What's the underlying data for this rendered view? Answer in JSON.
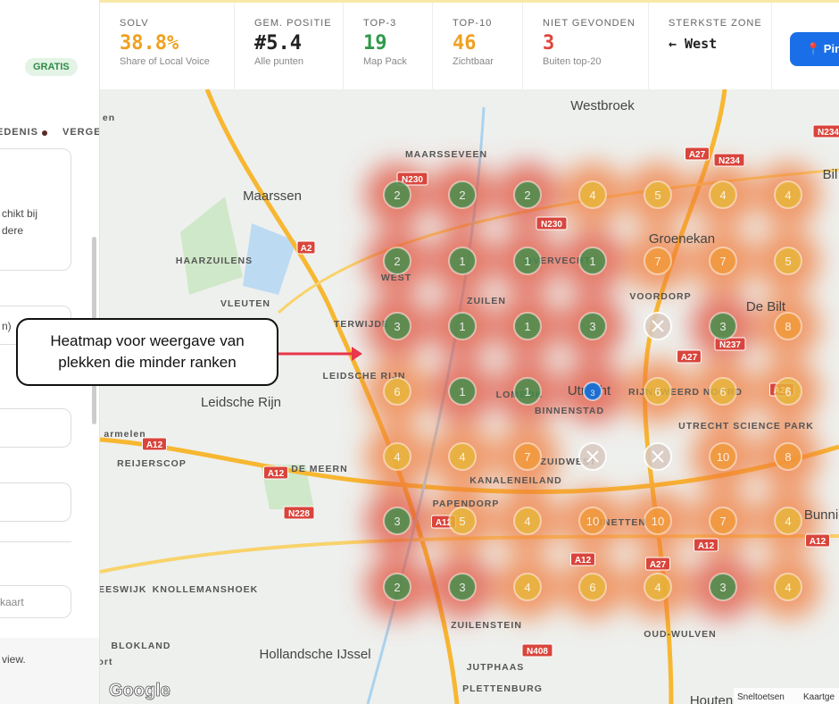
{
  "sidebar": {
    "badge": "GRATIS",
    "tabs": [
      "EDENIS",
      "VERGE"
    ],
    "snippets": [
      "chikt bij",
      "dere",
      "n)",
      "kaart",
      "view."
    ]
  },
  "stats": [
    {
      "label": "SOLV",
      "value": "38.8%",
      "sub": "Share of Local Voice"
    },
    {
      "label": "GEM. POSITIE",
      "value": "#5.4",
      "sub": "Alle punten"
    },
    {
      "label": "TOP-3",
      "value": "19",
      "sub": "Map Pack"
    },
    {
      "label": "TOP-10",
      "value": "46",
      "sub": "Zichtbaar"
    },
    {
      "label": "NIET GEVONDEN",
      "value": "3",
      "sub": "Buiten top-20"
    },
    {
      "label": "STERKSTE ZONE",
      "value": "← West",
      "sub": ""
    }
  ],
  "button": "📍 Pin",
  "map": {
    "places": [
      "Westbroek",
      "MAARSSEVEEN",
      "Maarssen",
      "HAARZUILENS",
      "VLEUTEN",
      "TERWIJDE",
      "LEIDSCHE RIJN",
      "Leidsche Rijn",
      "armelen",
      "REIJERSCOP",
      "DE MEERN",
      "WEST",
      "ZUILEN",
      "OVERVECHT",
      "Groenekan",
      "VOORDORP",
      "De Bilt",
      "LOMBOK",
      "Utrecht",
      "BINNENSTAD",
      "RIJNSWEERD NOORD",
      "UTRECHT SCIENCE PARK",
      "ZUIDWEST",
      "KANALENEILAND",
      "PAPENDORP",
      "LUNETTEN",
      "Bunni",
      "HEESWIJK",
      "KNOLLEMANSHOEK",
      "BLOKLAND",
      "Hollandsche IJssel",
      "ZUILENSTEIN",
      "JUTPHAAS",
      "PLETTENBURG",
      "OUD-WULVEN",
      "Houten",
      "en",
      "ort",
      "Bil"
    ],
    "roads": [
      "A2",
      "A12",
      "A12",
      "N228",
      "N230",
      "N230",
      "A27",
      "N234",
      "N234",
      "N237",
      "A27",
      "A28",
      "A12",
      "A12",
      "A27",
      "A12",
      "A12",
      "N408"
    ],
    "footer": [
      "Sneltoetsen",
      "Kaartge"
    ],
    "logo": "Google"
  },
  "grid": {
    "rows": [
      [
        2,
        2,
        2,
        4,
        5,
        4,
        4
      ],
      [
        2,
        1,
        1,
        1,
        7,
        7,
        5
      ],
      [
        3,
        1,
        1,
        3,
        null,
        3,
        8
      ],
      [
        6,
        1,
        1,
        3,
        6,
        6,
        6
      ],
      [
        4,
        4,
        7,
        null,
        null,
        10,
        8
      ],
      [
        3,
        5,
        4,
        10,
        10,
        7,
        4
      ],
      [
        2,
        3,
        4,
        6,
        4,
        3,
        4
      ]
    ]
  },
  "annotation": "Heatmap voor weergave van plekken die minder ranken"
}
